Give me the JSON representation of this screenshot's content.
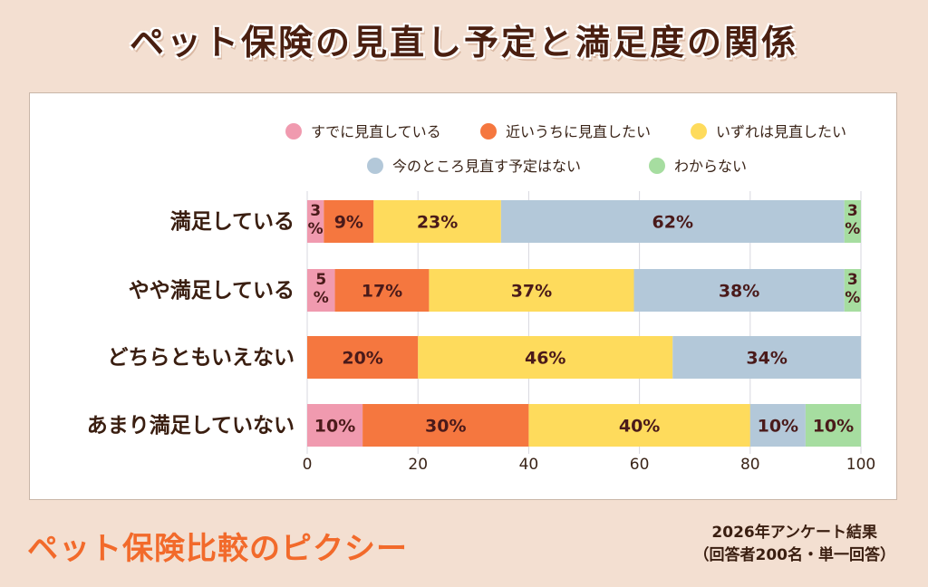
{
  "title": "ペット保険の見直し予定と満足度の関係",
  "brand": "ペット保険比較のピクシー",
  "note_line1": "2026年アンケート結果",
  "note_line2": "（回答者200名・単一回答）",
  "legend": [
    {
      "name": "すでに見直している",
      "color": "#f09aaf"
    },
    {
      "name": "近いうちに見直したい",
      "color": "#f5773f"
    },
    {
      "name": "いずれは見直したい",
      "color": "#fedb5c"
    },
    {
      "name": "今のところ見直す予定はない",
      "color": "#b3c8d9"
    },
    {
      "name": "わからない",
      "color": "#a6dda0"
    }
  ],
  "chart_data": {
    "type": "bar",
    "orientation": "horizontal",
    "stacked": true,
    "categories": [
      "満足している",
      "やや満足している",
      "どちらともいえない",
      "あまり満足していない"
    ],
    "series": [
      {
        "name": "すでに見直している",
        "values": [
          3,
          5,
          0,
          10
        ]
      },
      {
        "name": "近いうちに見直したい",
        "values": [
          9,
          17,
          20,
          30
        ]
      },
      {
        "name": "いずれは見直したい",
        "values": [
          23,
          37,
          46,
          40
        ]
      },
      {
        "name": "今のところ見直す予定はない",
        "values": [
          62,
          38,
          34,
          10
        ]
      },
      {
        "name": "わからない",
        "values": [
          3,
          3,
          0,
          10
        ]
      }
    ],
    "value_labels": [
      [
        "3\n%",
        "9%",
        "23%",
        "62%",
        "3\n%"
      ],
      [
        "5\n%",
        "17%",
        "37%",
        "38%",
        "3\n%"
      ],
      [
        "",
        "20%",
        "46%",
        "34%",
        ""
      ],
      [
        "10%",
        "30%",
        "40%",
        "10%",
        "10%"
      ]
    ],
    "xlim": [
      0,
      100
    ],
    "xticks": [
      "0",
      "20",
      "40",
      "60",
      "80",
      "100"
    ],
    "grid": true,
    "legend_position": "top"
  }
}
